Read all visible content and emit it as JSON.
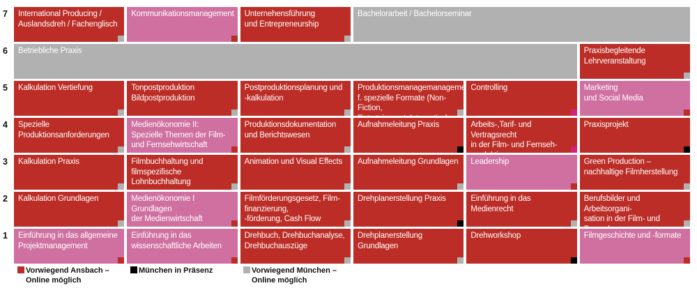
{
  "colors": {
    "red": "#bb2d26",
    "pink": "#cf70a1",
    "gray": "#b1b1b1",
    "black": "#000000",
    "magenta": "#d2237c"
  },
  "semesters": [
    {
      "number": "7",
      "modules": [
        {
          "title": "International Producing /\nAuslandsdreh / Fachenglisch",
          "color": "red",
          "marker": "gray"
        },
        {
          "title": "Kommunikationsmanagement",
          "color": "pink",
          "marker": "red"
        },
        {
          "title": "Unternehensführung\nund Entrepreneurship",
          "color": "red",
          "marker": "gray"
        },
        {
          "title": "Bachelorarbeit / Bachelorseminar",
          "color": "gray",
          "marker": null
        }
      ]
    },
    {
      "number": "6",
      "modules": [
        {
          "title": "Betriebliche Praxis",
          "color": "gray",
          "marker": null
        },
        {
          "title": "Praxisbegleitende\nLehrveranstaltung",
          "color": "red",
          "marker": "gray"
        }
      ]
    },
    {
      "number": "5",
      "modules": [
        {
          "title": "Kalkulation Vertiefung",
          "color": "red",
          "marker": "gray"
        },
        {
          "title": "Tonpostproduktion\nBildpostproduktion",
          "color": "red",
          "marker": "gray"
        },
        {
          "title": "Postproduktionsplanung und\n-kalkulation",
          "color": "red",
          "marker": "gray"
        },
        {
          "title": "Produktionsmanagemanagement\nf. spezielle Formate (Non-Fiction,\nEntertainment, Interactive)",
          "color": "red",
          "marker": "gray"
        },
        {
          "title": "Controlling",
          "color": "red",
          "marker": "magenta"
        },
        {
          "title": "Marketing\nund Social Media",
          "color": "pink",
          "marker": "red"
        }
      ]
    },
    {
      "number": "4",
      "modules": [
        {
          "title": "Spezielle\nProduktionsanforderungen",
          "color": "red",
          "marker": "gray"
        },
        {
          "title": "Medienökonomie II:\nSpezielle Themen der Film-\nund Fernsehwirtschaft",
          "color": "pink",
          "marker": "red"
        },
        {
          "title": "Produktionsdokumentation\nund Berichtswesen",
          "color": "red",
          "marker": "gray"
        },
        {
          "title": "Aufnahmeleitung Praxis",
          "color": "red",
          "marker": "black"
        },
        {
          "title": "Arbeits-,Tarif- und Vertragsrecht\nin der Film- und Fernseh-\nproduktion",
          "color": "red",
          "marker": "magenta"
        },
        {
          "title": "Praxisprojekt",
          "color": "red",
          "marker": "black"
        }
      ]
    },
    {
      "number": "3",
      "modules": [
        {
          "title": "Kalkulation Praxis",
          "color": "red",
          "marker": "gray"
        },
        {
          "title": "Filmbuchhaltung und\nfilmspezifische Lohnbuchhaltung",
          "color": "red",
          "marker": "gray"
        },
        {
          "title": "Animation und Visual Effects",
          "color": "red",
          "marker": "gray"
        },
        {
          "title": "Aufnahmeleitung Grundlagen",
          "color": "red",
          "marker": "gray"
        },
        {
          "title": "Leadership",
          "color": "pink",
          "marker": "red"
        },
        {
          "title": "Green Production –\nnachhaltige Filmherstellung",
          "color": "red",
          "marker": "gray"
        }
      ]
    },
    {
      "number": "2",
      "modules": [
        {
          "title": "Kalkulation Grundlagen",
          "color": "red",
          "marker": "gray"
        },
        {
          "title": "Medienökonomie I\nGrundlagen\nder Medienwirtschaft",
          "color": "pink",
          "marker": "red"
        },
        {
          "title": "Filmförderungsgesetz, Film-\nfinanzierung,\n-förderung, Cash Flow",
          "color": "red",
          "marker": "gray"
        },
        {
          "title": "Drehplanerstellung Praxis",
          "color": "red",
          "marker": "black"
        },
        {
          "title": "Einführung in das Medienrecht",
          "color": "red",
          "marker": "gray"
        },
        {
          "title": "Berufsbilder und Arbeitsorgani-\nsation in der Film- und Fernseh-\nwirtschaft",
          "color": "red",
          "marker": "gray"
        }
      ]
    },
    {
      "number": "1",
      "modules": [
        {
          "title": "Einführung in das allgemeine\nProjektmanagement",
          "color": "pink",
          "marker": "red"
        },
        {
          "title": "Einführung in das\nwissenschaftliche Arbeiten",
          "color": "pink",
          "marker": "red"
        },
        {
          "title": "Drehbuch, Drehbuchanalyse,\nDrehbuchauszüge",
          "color": "red",
          "marker": "gray"
        },
        {
          "title": "Drehplanerstellung Grundlagen",
          "color": "red",
          "marker": "gray"
        },
        {
          "title": "Drehworkshop",
          "color": "red",
          "marker": "black"
        },
        {
          "title": "Filmgeschichte und -formate",
          "color": "pink",
          "marker": "red"
        }
      ]
    }
  ],
  "legend": [
    {
      "label": "Vorwiegend Ansbach –\nOnline möglich",
      "color": "red"
    },
    {
      "label": "München in Präsenz",
      "color": "black"
    },
    {
      "label": "Vorwiegend München –\nOnline möglich",
      "color": "gray"
    }
  ]
}
